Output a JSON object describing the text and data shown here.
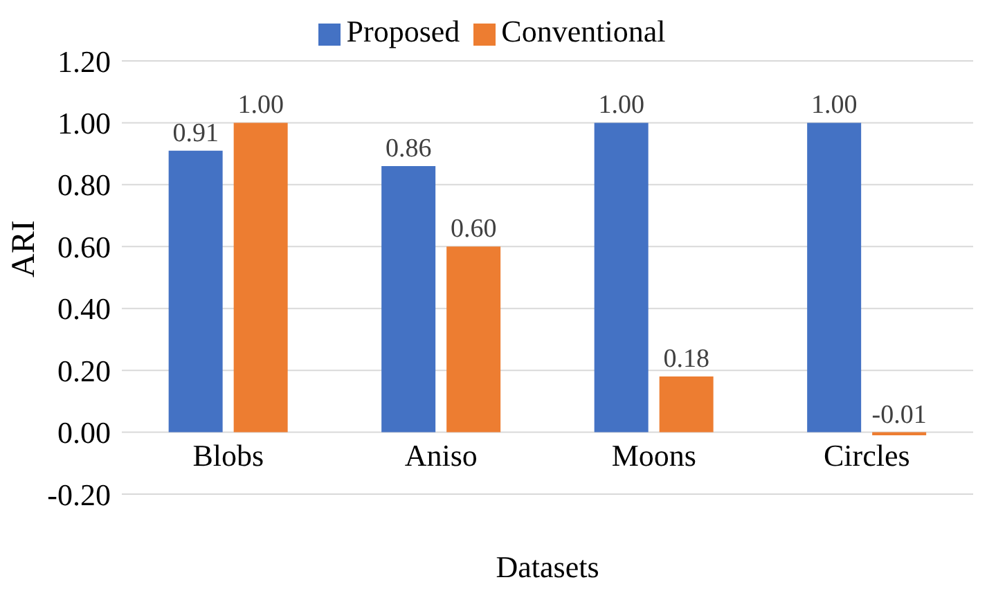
{
  "chart_data": {
    "type": "bar",
    "xlabel": "Datasets",
    "ylabel": "ARI",
    "categories": [
      "Blobs",
      "Aniso",
      "Moons",
      "Circles"
    ],
    "series": [
      {
        "name": "Proposed",
        "color": "#4472c4",
        "values": [
          0.91,
          0.86,
          1.0,
          1.0
        ],
        "value_labels": [
          "0.91",
          "0.86",
          "1.00",
          "1.00"
        ]
      },
      {
        "name": "Conventional",
        "color": "#ed7d31",
        "values": [
          1.0,
          0.6,
          0.18,
          -0.01
        ],
        "value_labels": [
          "1.00",
          "0.60",
          "0.18",
          "-0.01"
        ]
      }
    ],
    "ylim": [
      -0.2,
      1.2
    ],
    "yticks": [
      {
        "value": -0.2,
        "label": "-0.20"
      },
      {
        "value": 0,
        "label": "0.00"
      },
      {
        "value": 0.2,
        "label": "0.20"
      },
      {
        "value": 0.4,
        "label": "0.40"
      },
      {
        "value": 0.6,
        "label": "0.60"
      },
      {
        "value": 0.8,
        "label": "0.80"
      },
      {
        "value": 1.0,
        "label": "1.00"
      },
      {
        "value": 1.2,
        "label": "1.20"
      }
    ],
    "grid": "y",
    "legend": "top"
  }
}
